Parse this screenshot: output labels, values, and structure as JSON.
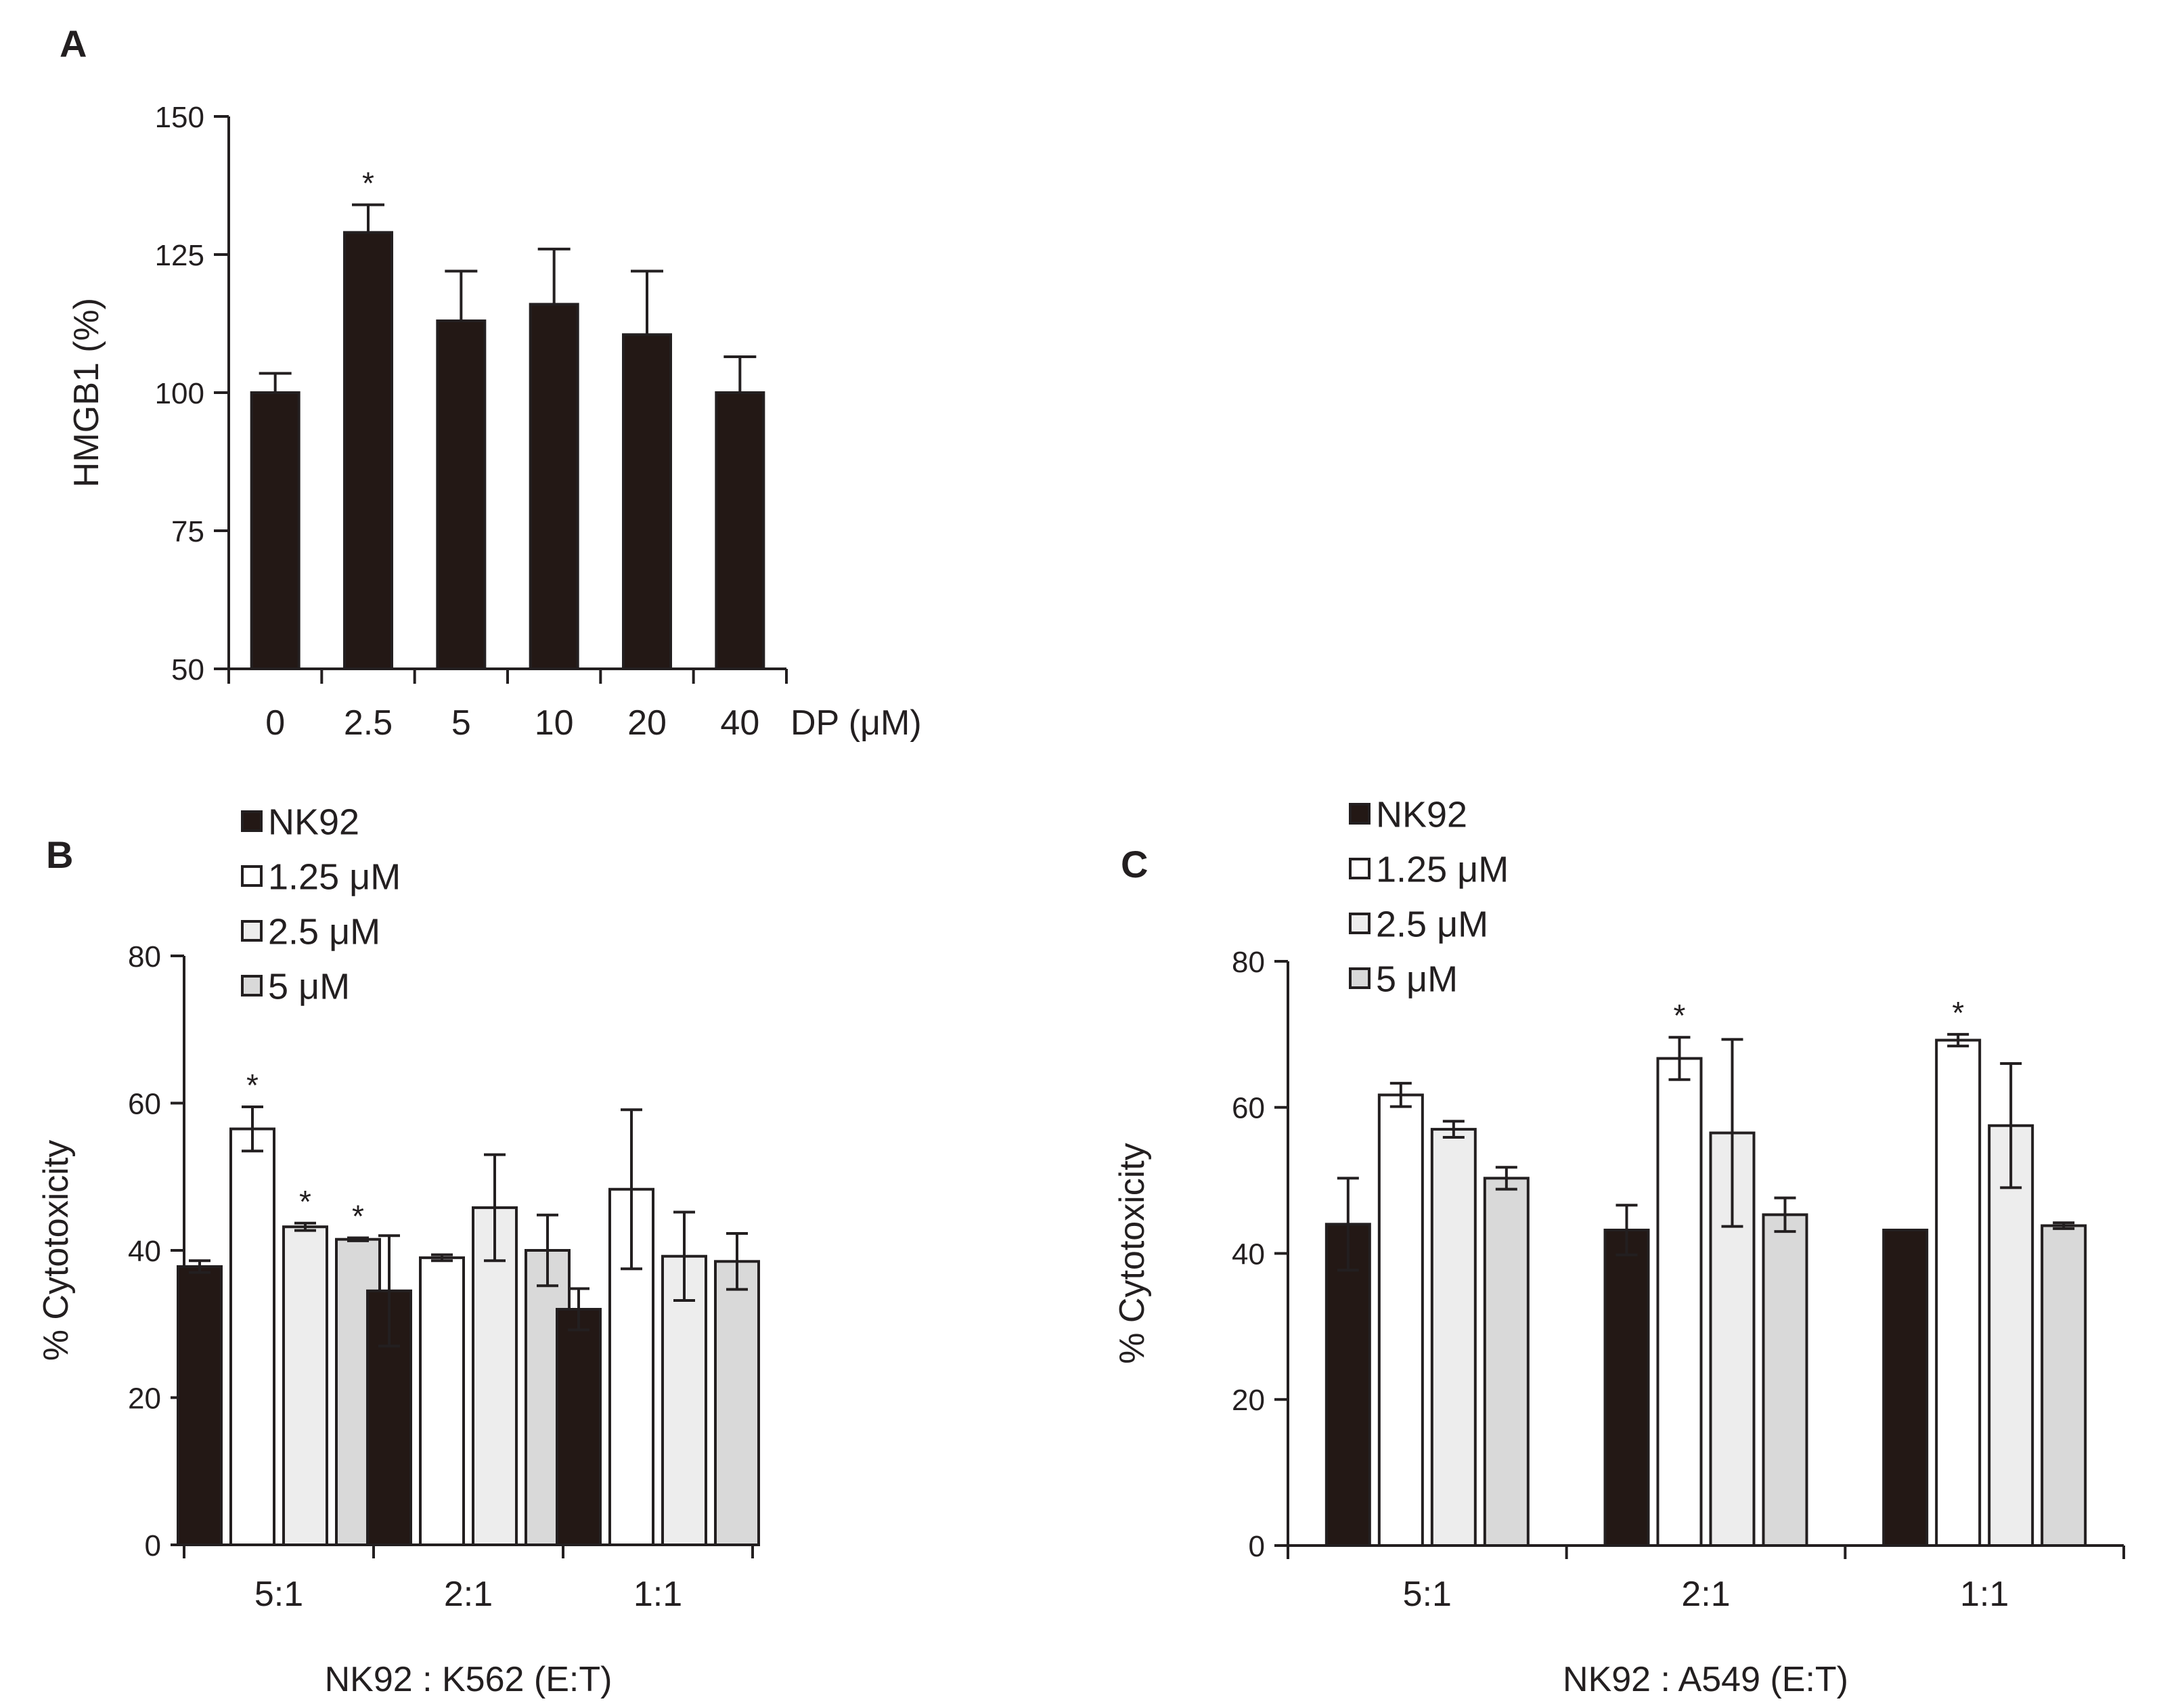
{
  "colors": {
    "ink": "#231f20",
    "nk92": "#231815",
    "c125": "#ffffff",
    "c25": "#ededed",
    "c5": "#d9d9d9",
    "outline": "#231f20"
  },
  "chart_data": [
    {
      "panel": "A",
      "type": "bar",
      "title": "",
      "ylabel": "HMGB1 (%)",
      "xlabel": "DP (μM)",
      "ylim": [
        50,
        150
      ],
      "yticks": [
        50,
        75,
        100,
        125,
        150
      ],
      "categories": [
        "0",
        "2.5",
        "5",
        "10",
        "20",
        "40"
      ],
      "series": [
        {
          "name": "HMGB1",
          "color": "#231815",
          "values": [
            100,
            129,
            113,
            116,
            110.5,
            100
          ],
          "errors": [
            3.5,
            5,
            9,
            10,
            11.5,
            6.5
          ],
          "significant": [
            false,
            true,
            false,
            false,
            false,
            false
          ]
        }
      ]
    },
    {
      "panel": "B",
      "type": "bar",
      "title": "",
      "ylabel": "% Cytotoxicity",
      "xlabel": "NK92 : K562 (E:T)",
      "ylim": [
        0,
        80
      ],
      "yticks": [
        0,
        20,
        40,
        60,
        80
      ],
      "legend_position": "top-left",
      "categories": [
        "5:1",
        "2:1",
        "1:1"
      ],
      "series": [
        {
          "name": "NK92",
          "color": "#231815",
          "values": [
            37.8,
            34.5,
            32
          ],
          "errors": [
            0.8,
            7.5,
            2.8
          ],
          "significant": [
            false,
            false,
            false
          ]
        },
        {
          "name": "1.25 μM",
          "color": "#ffffff",
          "values": [
            56.5,
            39,
            48.3
          ],
          "errors": [
            3,
            0.4,
            10.8
          ],
          "significant": [
            true,
            false,
            false
          ]
        },
        {
          "name": "2.5 μM",
          "color": "#ededed",
          "values": [
            43.2,
            45.8,
            39.2
          ],
          "errors": [
            0.5,
            7.2,
            6
          ],
          "significant": [
            true,
            false,
            false
          ]
        },
        {
          "name": "5 μM",
          "color": "#d9d9d9",
          "values": [
            41.5,
            40,
            38.5
          ],
          "errors": [
            0.2,
            4.8,
            3.8
          ],
          "significant": [
            true,
            false,
            false
          ]
        }
      ]
    },
    {
      "panel": "C",
      "type": "bar",
      "title": "",
      "ylabel": "% Cytotoxicity",
      "xlabel": "NK92 : A549 (E:T)",
      "ylim": [
        0,
        80
      ],
      "yticks": [
        0,
        20,
        40,
        60,
        80
      ],
      "legend_position": "top-left",
      "categories": [
        "5:1",
        "2:1",
        "1:1"
      ],
      "series": [
        {
          "name": "NK92",
          "color": "#231815",
          "values": [
            44,
            43.2,
            43.2
          ],
          "errors": [
            6.3,
            3.4,
            0
          ],
          "significant": [
            false,
            false,
            false
          ]
        },
        {
          "name": "1.25 μM",
          "color": "#ffffff",
          "values": [
            61.7,
            66.7,
            69.2
          ],
          "errors": [
            1.6,
            2.9,
            0.8
          ],
          "significant": [
            false,
            true,
            true
          ]
        },
        {
          "name": "2.5 μM",
          "color": "#ededed",
          "values": [
            57,
            56.5,
            57.5
          ],
          "errors": [
            1.1,
            12.8,
            8.5
          ],
          "significant": [
            false,
            false,
            false
          ]
        },
        {
          "name": "5 μM",
          "color": "#d9d9d9",
          "values": [
            50.3,
            45.3,
            43.8
          ],
          "errors": [
            1.5,
            2.3,
            0.4
          ],
          "significant": [
            false,
            false,
            false
          ]
        }
      ]
    }
  ]
}
